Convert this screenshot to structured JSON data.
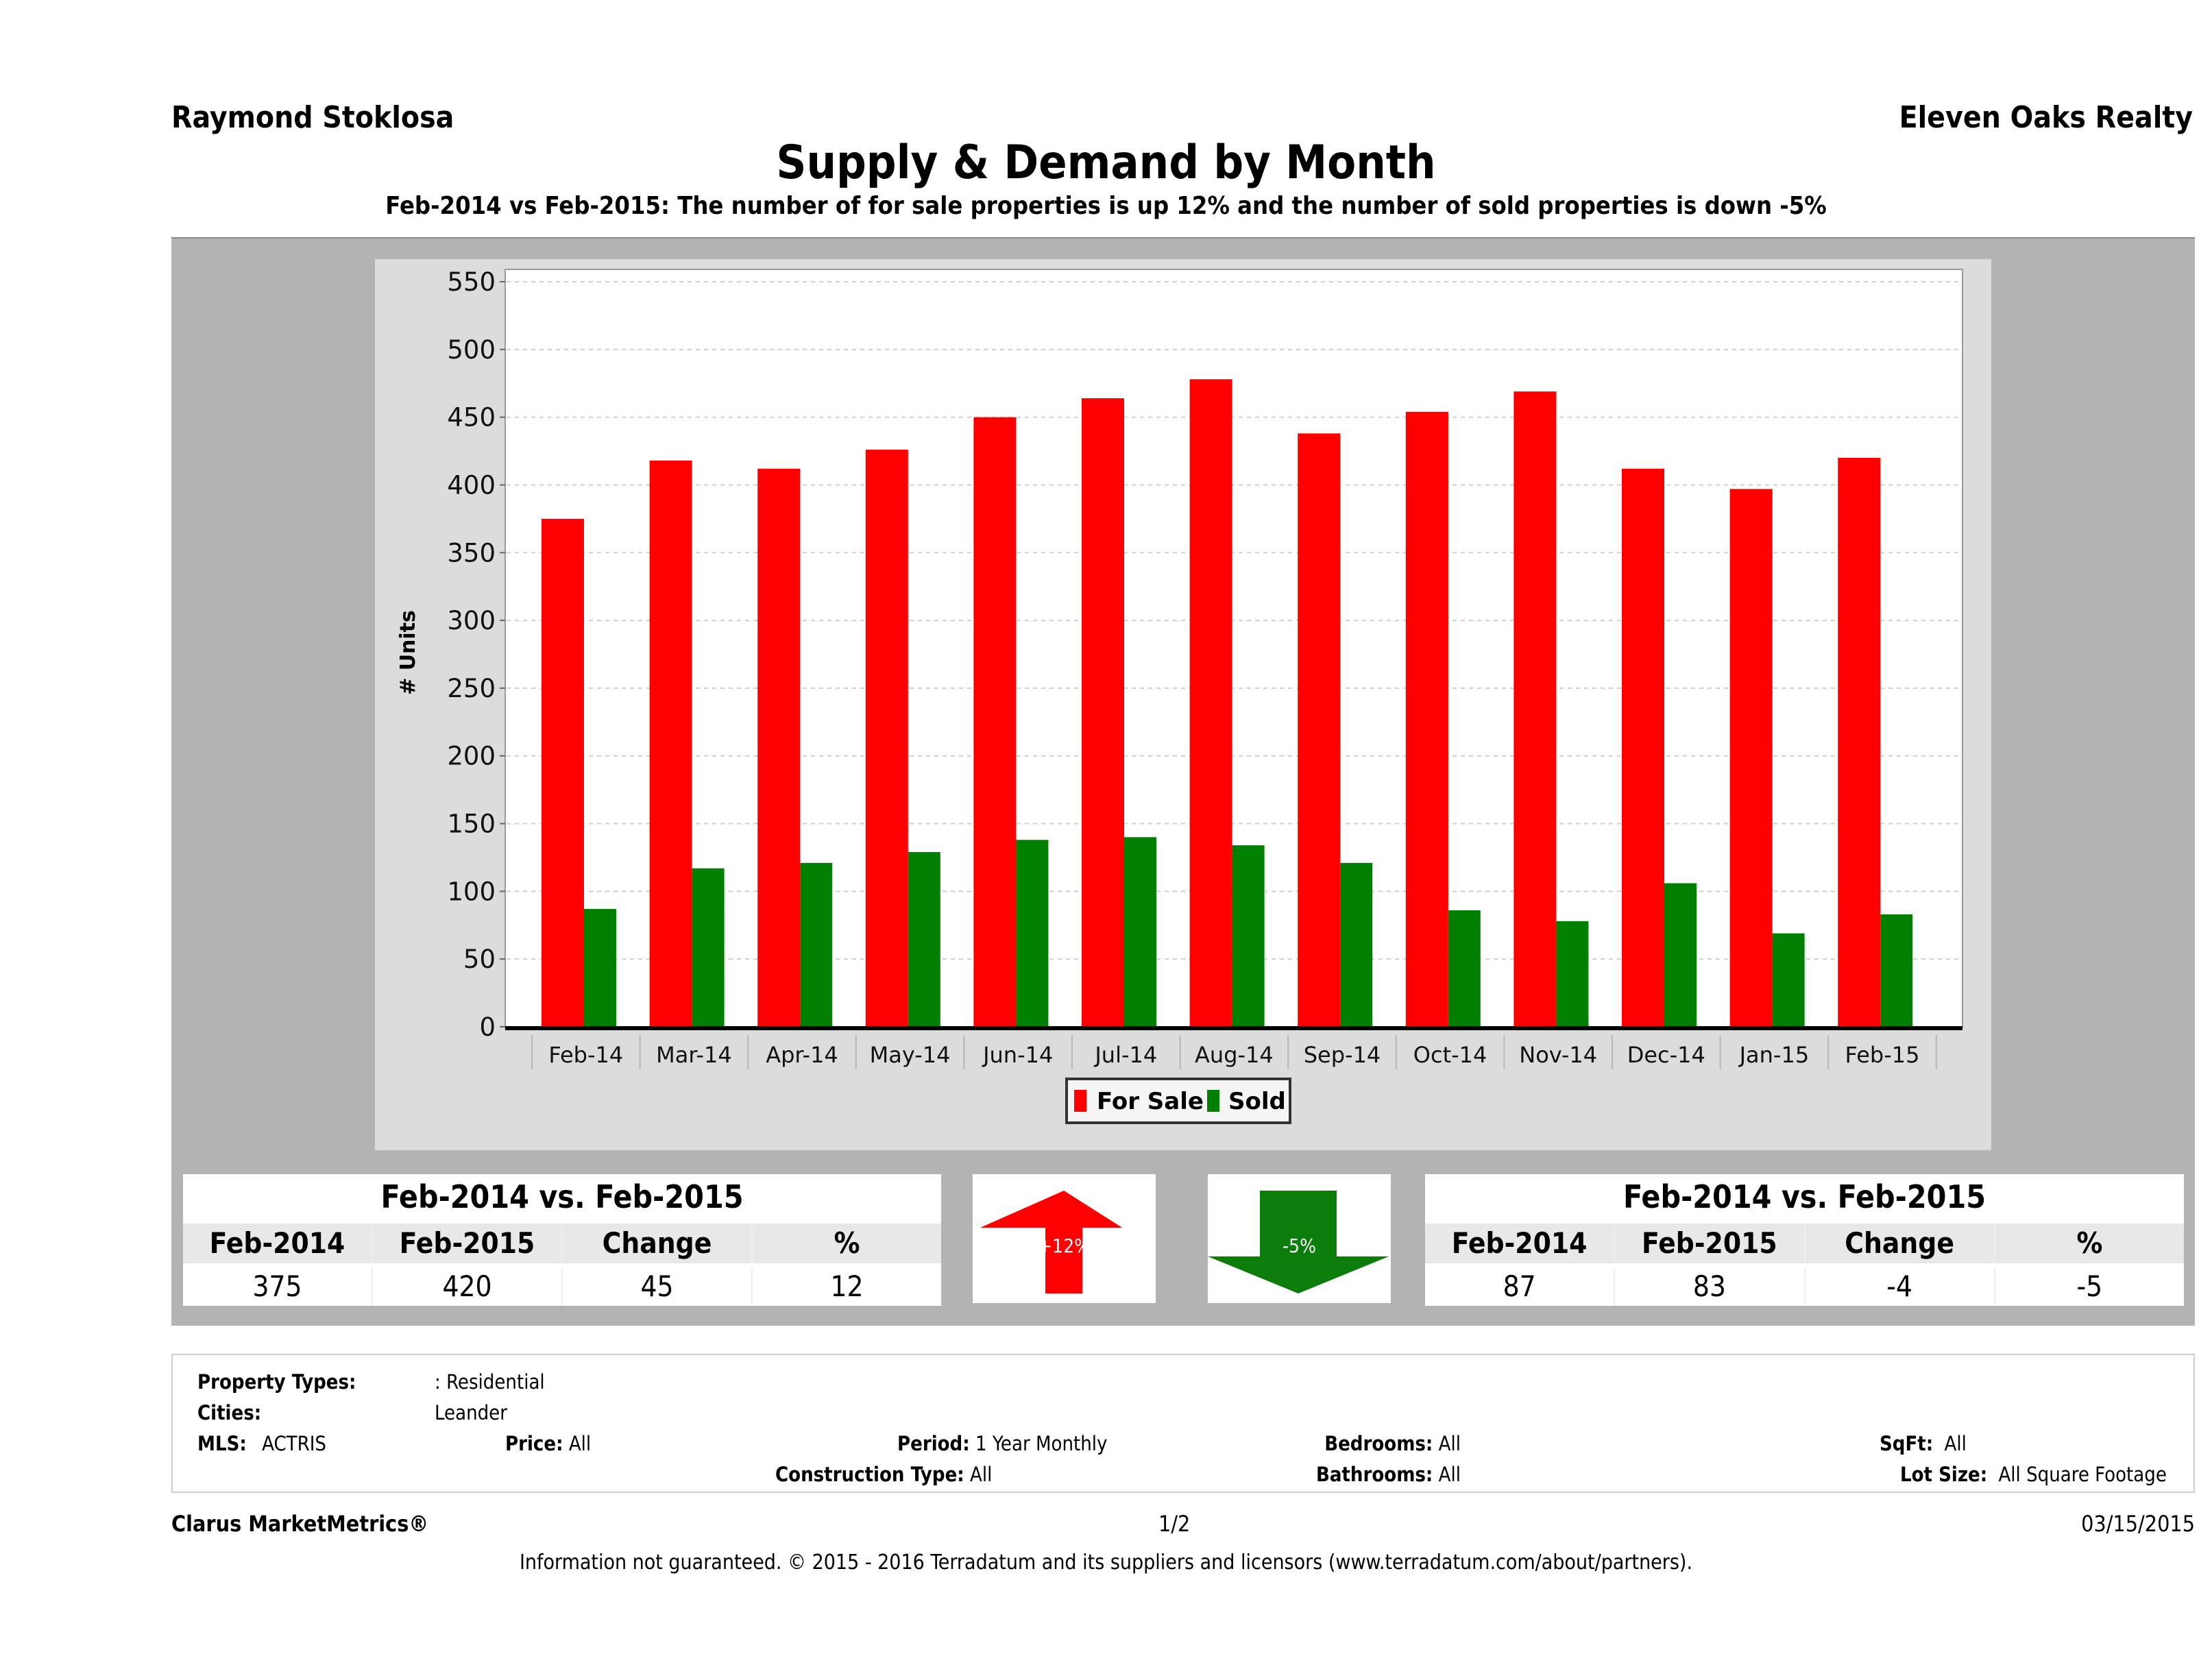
{
  "header": {
    "agent_name": "Raymond Stoklosa",
    "brokerage": "Eleven Oaks Realty"
  },
  "chart_data": {
    "type": "bar",
    "title": "Supply & Demand by Month",
    "subtitle": "Feb-2014 vs Feb-2015: The number of for sale properties is up 12% and the number of sold properties is down -5%",
    "xlabel": "",
    "ylabel": "# Units",
    "ylim": [
      0,
      550
    ],
    "yticks": [
      0,
      50,
      100,
      150,
      200,
      250,
      300,
      350,
      400,
      450,
      500,
      550
    ],
    "grid": true,
    "legend_position": "bottom-center",
    "categories": [
      "Feb-14",
      "Mar-14",
      "Apr-14",
      "May-14",
      "Jun-14",
      "Jul-14",
      "Aug-14",
      "Sep-14",
      "Oct-14",
      "Nov-14",
      "Dec-14",
      "Jan-15",
      "Feb-15"
    ],
    "series": [
      {
        "name": "For Sale",
        "color": "#ff0000",
        "values": [
          375,
          418,
          412,
          426,
          450,
          464,
          478,
          438,
          454,
          469,
          412,
          397,
          420
        ]
      },
      {
        "name": "Sold",
        "color": "#007f00",
        "values": [
          87,
          117,
          121,
          129,
          138,
          140,
          134,
          121,
          86,
          78,
          106,
          69,
          83
        ]
      }
    ]
  },
  "for_sale_comparison": {
    "title": "Feb-2014 vs. Feb-2015",
    "headers": [
      "Feb-2014",
      "Feb-2015",
      "Change",
      "%"
    ],
    "values": [
      "375",
      "420",
      "45",
      "12"
    ],
    "arrow_label": "+12%",
    "arrow_direction": "up",
    "arrow_color": "#ff0000"
  },
  "sold_comparison": {
    "title": "Feb-2014 vs. Feb-2015",
    "headers": [
      "Feb-2014",
      "Feb-2015",
      "Change",
      "%"
    ],
    "values": [
      "87",
      "83",
      "-4",
      "-5"
    ],
    "arrow_label": "-5%",
    "arrow_direction": "down",
    "arrow_color": "#0a7d0a"
  },
  "criteria": {
    "property_types_label": "Property Types:",
    "property_types_value": ": Residential",
    "cities_label": "Cities:",
    "cities_value": "Leander",
    "mls_label": "MLS:",
    "mls_value": "ACTRIS",
    "price_label": "Price:",
    "price_value": "All",
    "period_label": "Period:",
    "period_value": "1 Year Monthly",
    "construction_label": "Construction Type:",
    "construction_value": "All",
    "bedrooms_label": "Bedrooms:",
    "bedrooms_value": "All",
    "bathrooms_label": "Bathrooms:",
    "bathrooms_value": "All",
    "sqft_label": "SqFt:",
    "sqft_value": "All",
    "lot_label": "Lot Size:",
    "lot_value": "All Square Footage"
  },
  "footer": {
    "brand": "Clarus MarketMetrics®",
    "page": "1/2",
    "date": "03/15/2015",
    "disclaimer": "Information not guaranteed. © 2015 - 2016 Terradatum and its suppliers and licensors (www.terradatum.com/about/partners)."
  }
}
